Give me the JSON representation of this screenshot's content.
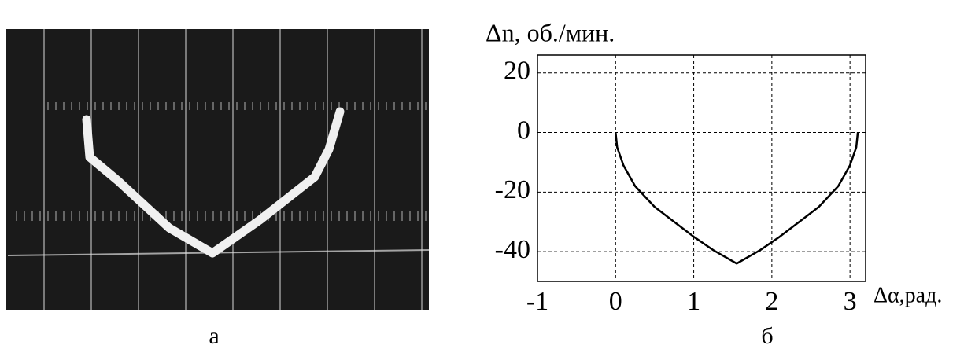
{
  "captions": [
    "а",
    "б"
  ],
  "chart_data": {
    "type": "line",
    "title": "Δn, об./мин.",
    "x_label": "Δα,рад.",
    "x": [
      0,
      0.02,
      0.1,
      0.25,
      0.5,
      0.75,
      1.0,
      1.25,
      1.55,
      1.85,
      2.1,
      2.35,
      2.6,
      2.85,
      3.0,
      3.08,
      3.1
    ],
    "values": [
      0,
      -5,
      -11,
      -18,
      -25,
      -30,
      -35,
      -39.5,
      -44,
      -39.5,
      -35,
      -30,
      -25,
      -18,
      -11,
      -5,
      0
    ],
    "color": "#000000",
    "xlim": [
      -1,
      3.2
    ],
    "xticks": [
      -1,
      0,
      1,
      2,
      3
    ],
    "ylim": [
      -50,
      26
    ],
    "yticks": [
      -40,
      -20,
      0,
      20
    ],
    "grid": true
  }
}
